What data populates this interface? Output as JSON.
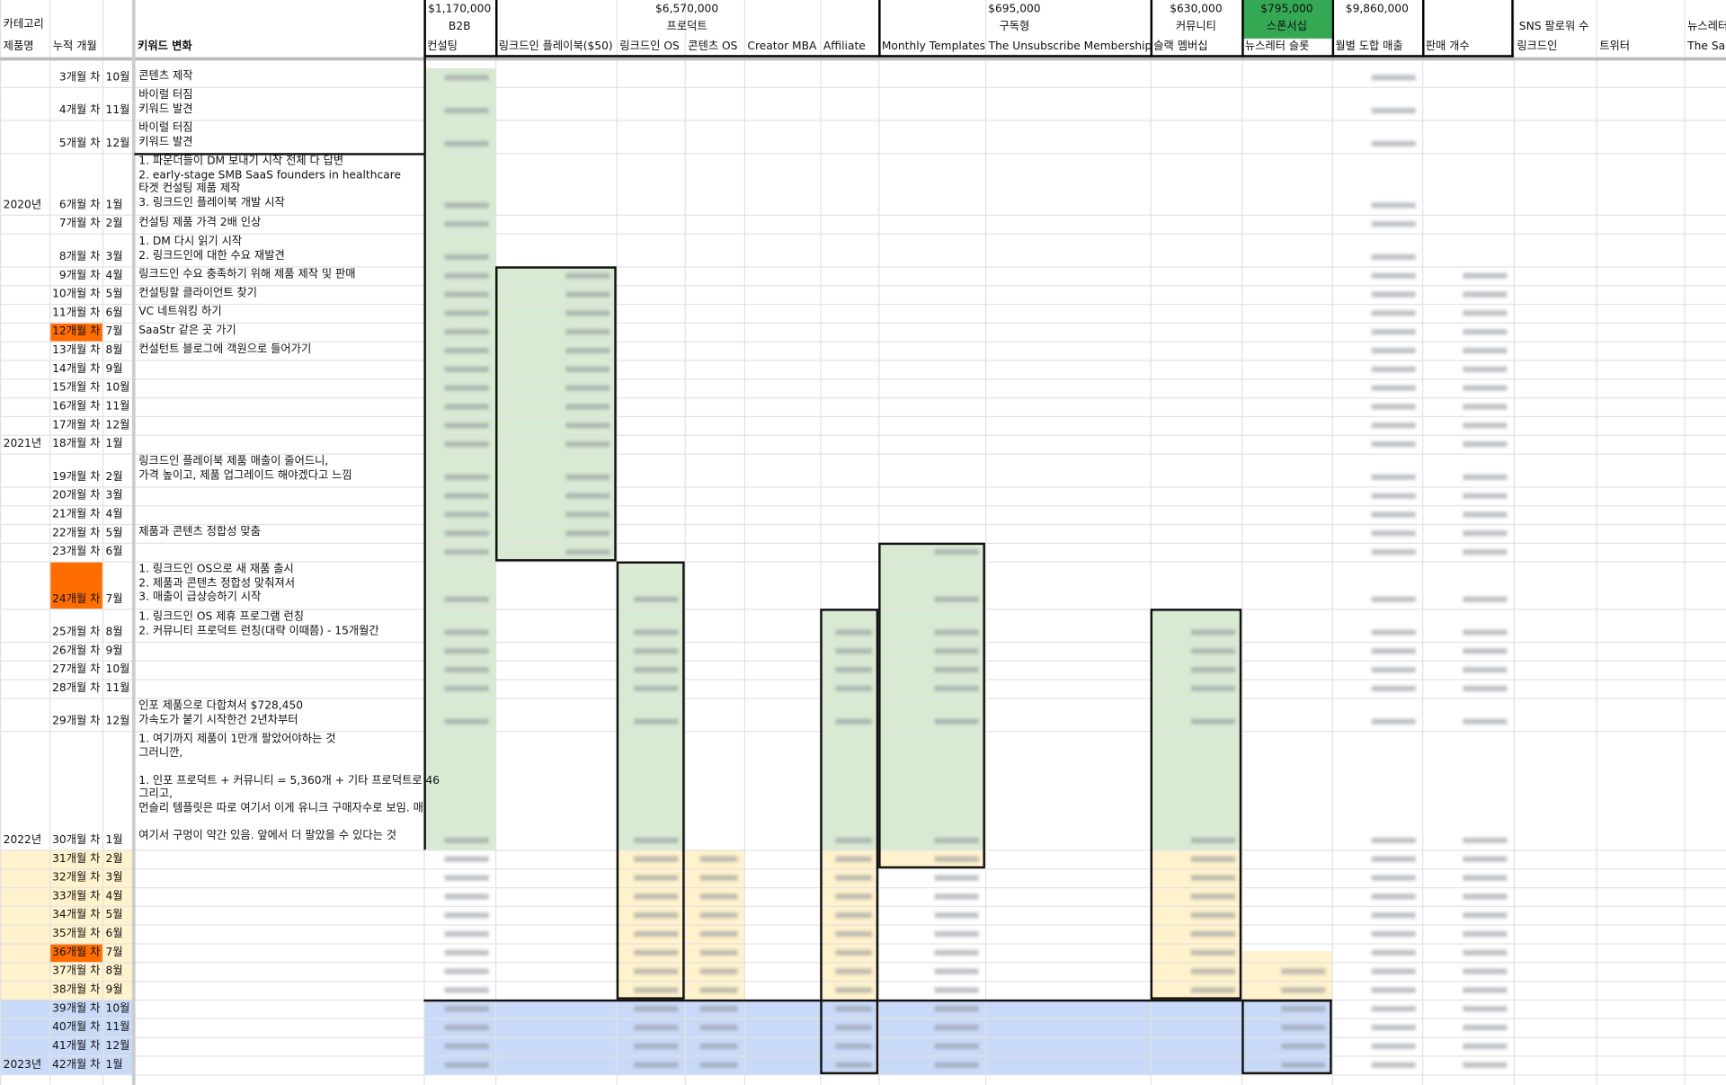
{
  "header": {
    "category": "카테고리",
    "groups": [
      {
        "value": "$1,170,000",
        "name": "B2B"
      },
      {
        "value": "$6,570,000",
        "name": "프로덕트"
      },
      {
        "value": "$695,000",
        "name": "구독형"
      },
      {
        "value": "$630,000",
        "name": "커뮤니티"
      },
      {
        "value": "$795,000",
        "name": "스폰서십"
      },
      {
        "value": "$9,860,000"
      }
    ],
    "sns": "SNS 팔로워 수",
    "newsletter": "뉴스레터",
    "columns": [
      "제품명",
      "누적 개월",
      "키워드 변화",
      "컨설팅",
      "링크드인 플레이북($50)",
      "링크드인 OS",
      "콘텐츠 OS",
      "Creator MBA",
      "Affiliate",
      "Monthly Templates",
      "The Unsubscribe Membership",
      "슬랙 멤버십",
      "뉴스레터 슬롯",
      "월별 도합 매출",
      "판매 개수",
      "링크드인",
      "트위터",
      "The Sa"
    ]
  },
  "rows": [
    {
      "months": "3개월 차",
      "month": "10월",
      "keyword": "콘텐츠 제작"
    },
    {
      "months": "4개월 차",
      "month": "11월",
      "keyword": "바이럴 터짐\n키워드 발견"
    },
    {
      "months": "5개월 차",
      "month": "12월",
      "keyword": "바이럴 터짐\n키워드 발견"
    },
    {
      "year": "2020년",
      "months": "6개월 차",
      "month": "1월",
      "keyword": "1. 파운더들이 DM 보내기 시작 전체 다 답변\n2. early-stage SMB SaaS founders in healthcare\n타겟 컨설팅 제품 제작\n3. 링크드인 플레이북 개발 시작"
    },
    {
      "months": "7개월 차",
      "month": "2월",
      "keyword": "컨설팅 제품 가격 2배 인상"
    },
    {
      "months": "8개월 차",
      "month": "3월",
      "keyword": "1. DM 다시 읽기 시작\n2. 링크드인에 대한 수요 재발견"
    },
    {
      "months": "9개월 차",
      "month": "4월",
      "keyword": "링크드인 수요 충족하기 위해 제품 제작 및 판매"
    },
    {
      "months": "10개월 차",
      "month": "5월",
      "keyword": "컨설팅할 클라이언트 찾기"
    },
    {
      "months": "11개월 차",
      "month": "6월",
      "keyword": "VC 네트워킹 하기"
    },
    {
      "months": "12개월 차",
      "month": "7월",
      "keyword": "SaaStr 같은 곳 가기"
    },
    {
      "months": "13개월 차",
      "month": "8월",
      "keyword": "컨설턴트 블로그에 객원으로 들어가기"
    },
    {
      "months": "14개월 차",
      "month": "9월"
    },
    {
      "months": "15개월 차",
      "month": "10월"
    },
    {
      "months": "16개월 차",
      "month": "11월"
    },
    {
      "months": "17개월 차",
      "month": "12월"
    },
    {
      "year": "2021년",
      "months": "18개월 차",
      "month": "1월"
    },
    {
      "months": "19개월 차",
      "month": "2월",
      "keyword": "링크드인 플레이북 제품 매출이 줄어드니,\n가격 높이고, 제품 업그레이드 해야겠다고 느낌"
    },
    {
      "months": "20개월 차",
      "month": "3월"
    },
    {
      "months": "21개월 차",
      "month": "4월"
    },
    {
      "months": "22개월 차",
      "month": "5월",
      "keyword": "제품과 콘텐츠 정합성 맞춤"
    },
    {
      "months": "23개월 차",
      "month": "6월"
    },
    {
      "months": "24개월 차",
      "month": "7월",
      "keyword": "1. 링크드인 OS으로 새 재품 출시\n2. 제품과 콘텐츠 정합성 맞춰져서\n3. 매출이 급상승하기 시작"
    },
    {
      "months": "25개월 차",
      "month": "8월",
      "keyword": "1. 링크드인 OS 제휴 프로그램 런칭\n2. 커뮤니티 프로덕트 런칭(대략 이때쯤) - 15개월간"
    },
    {
      "months": "26개월 차",
      "month": "9월"
    },
    {
      "months": "27개월 차",
      "month": "10월"
    },
    {
      "months": "28개월 차",
      "month": "11월"
    },
    {
      "months": "29개월 차",
      "month": "12월",
      "keyword": "인포 제품으로 다합쳐서 $728,450\n가속도가 붙기 시작한건 2년차부터"
    },
    {
      "year": "2022년",
      "months": "30개월 차",
      "month": "1월",
      "keyword": "1. 여기까지 제품이 1만개 팔았어야하는 것\n그러니깐,\n\n1. 인포 프로덕트 + 커뮤니티 = 5,360개 + 기타 프로덕트로 46\n그리고,\n먼슬리 템플릿은 따로 여기서 이게 유니크 구매자수로 보임. 매\n\n여기서 구멍이 약간 있음. 앞에서 더 팔았을 수 있다는 것"
    },
    {
      "months": "31개월 차",
      "month": "2월"
    },
    {
      "months": "32개월 차",
      "month": "3월"
    },
    {
      "months": "33개월 차",
      "month": "4월"
    },
    {
      "months": "34개월 차",
      "month": "5월"
    },
    {
      "months": "35개월 차",
      "month": "6월"
    },
    {
      "months": "36개월 차",
      "month": "7월"
    },
    {
      "months": "37개월 차",
      "month": "8월"
    },
    {
      "months": "38개월 차",
      "month": "9월"
    },
    {
      "months": "39개월 차",
      "month": "10월"
    },
    {
      "months": "40개월 차",
      "month": "11월"
    },
    {
      "months": "41개월 차",
      "month": "12월"
    },
    {
      "year": "2023년",
      "months": "42개월 차",
      "month": "1월"
    }
  ]
}
